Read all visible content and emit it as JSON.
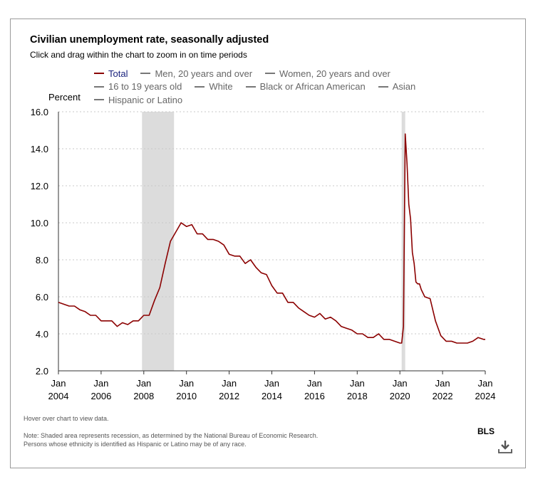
{
  "frame_title": "Civilian unemployment rate, seasonally adjusted",
  "subtitle": "Click and drag within the chart to zoom in on time periods",
  "legend": [
    {
      "label": "Total",
      "active": true
    },
    {
      "label": "Men, 20 years and over",
      "active": false
    },
    {
      "label": "Women, 20 years and over",
      "active": false
    },
    {
      "label": "16 to 19 years old",
      "active": false
    },
    {
      "label": "White",
      "active": false
    },
    {
      "label": "Black or African American",
      "active": false
    },
    {
      "label": "Asian",
      "active": false
    },
    {
      "label": "Hispanic or Latino",
      "active": false
    }
  ],
  "hover_text": "Hover over chart to view data.",
  "note_line1": "Note: Shaded area represents recession, as determined by the National Bureau of Economic Research.",
  "note_line2": "Persons whose ethnicity is identified as Hispanic or Latino may be of any race.",
  "source_label": "BLS",
  "colors": {
    "series": "#8b0000",
    "recession": "#dcdcdc",
    "legend_active_text": "#1a237e"
  },
  "icons": {
    "download": "download-icon"
  },
  "chart_data": {
    "type": "line",
    "title": "Civilian unemployment rate, seasonally adjusted",
    "ylabel": "Percent",
    "ylim": [
      2.0,
      16.0
    ],
    "yticks": [
      "2.0",
      "4.0",
      "6.0",
      "8.0",
      "10.0",
      "12.0",
      "14.0",
      "16.0"
    ],
    "xlim": [
      "2004-01",
      "2024-01"
    ],
    "xticks": [
      {
        "month": "Jan",
        "year": "2004",
        "at": "2004-01"
      },
      {
        "month": "Jan",
        "year": "2006",
        "at": "2006-01"
      },
      {
        "month": "Jan",
        "year": "2008",
        "at": "2008-01"
      },
      {
        "month": "Jan",
        "year": "2010",
        "at": "2010-01"
      },
      {
        "month": "Jan",
        "year": "2012",
        "at": "2012-01"
      },
      {
        "month": "Jan",
        "year": "2014",
        "at": "2014-01"
      },
      {
        "month": "Jan",
        "year": "2016",
        "at": "2016-01"
      },
      {
        "month": "Jan",
        "year": "2018",
        "at": "2018-01"
      },
      {
        "month": "Jan",
        "year": "2020",
        "at": "2020-01"
      },
      {
        "month": "Jan",
        "year": "2022",
        "at": "2022-01"
      },
      {
        "month": "Jan",
        "year": "2024",
        "at": "2024-01"
      }
    ],
    "grid": true,
    "legend_position": "top",
    "recessions": [
      {
        "start": "2007-12",
        "end": "2009-06"
      },
      {
        "start": "2020-02",
        "end": "2020-04"
      }
    ],
    "series": [
      {
        "name": "Total",
        "x": [
          "2004-01",
          "2004-04",
          "2004-07",
          "2004-10",
          "2005-01",
          "2005-04",
          "2005-07",
          "2005-10",
          "2006-01",
          "2006-04",
          "2006-07",
          "2006-10",
          "2007-01",
          "2007-04",
          "2007-07",
          "2007-10",
          "2008-01",
          "2008-04",
          "2008-07",
          "2008-10",
          "2009-01",
          "2009-04",
          "2009-07",
          "2009-10",
          "2010-01",
          "2010-04",
          "2010-07",
          "2010-10",
          "2011-01",
          "2011-04",
          "2011-07",
          "2011-10",
          "2012-01",
          "2012-04",
          "2012-07",
          "2012-10",
          "2013-01",
          "2013-04",
          "2013-07",
          "2013-10",
          "2014-01",
          "2014-04",
          "2014-07",
          "2014-10",
          "2015-01",
          "2015-04",
          "2015-07",
          "2015-10",
          "2016-01",
          "2016-04",
          "2016-07",
          "2016-10",
          "2017-01",
          "2017-04",
          "2017-07",
          "2017-10",
          "2018-01",
          "2018-04",
          "2018-07",
          "2018-10",
          "2019-01",
          "2019-04",
          "2019-07",
          "2019-10",
          "2020-01",
          "2020-02",
          "2020-03",
          "2020-04",
          "2020-05",
          "2020-06",
          "2020-07",
          "2020-08",
          "2020-09",
          "2020-10",
          "2020-11",
          "2020-12",
          "2021-01",
          "2021-03",
          "2021-06",
          "2021-09",
          "2021-12",
          "2022-03",
          "2022-06",
          "2022-09",
          "2022-12",
          "2023-03",
          "2023-06",
          "2023-09",
          "2023-12",
          "2024-01"
        ],
        "values": [
          5.7,
          5.6,
          5.5,
          5.5,
          5.3,
          5.2,
          5.0,
          5.0,
          4.7,
          4.7,
          4.7,
          4.4,
          4.6,
          4.5,
          4.7,
          4.7,
          5.0,
          5.0,
          5.8,
          6.5,
          7.8,
          9.0,
          9.5,
          10.0,
          9.8,
          9.9,
          9.4,
          9.4,
          9.1,
          9.1,
          9.0,
          8.8,
          8.3,
          8.2,
          8.2,
          7.8,
          8.0,
          7.6,
          7.3,
          7.2,
          6.6,
          6.2,
          6.2,
          5.7,
          5.7,
          5.4,
          5.2,
          5.0,
          4.9,
          5.1,
          4.8,
          4.9,
          4.7,
          4.4,
          4.3,
          4.2,
          4.0,
          4.0,
          3.8,
          3.8,
          4.0,
          3.7,
          3.7,
          3.6,
          3.5,
          3.5,
          4.4,
          14.8,
          13.2,
          11.0,
          10.2,
          8.4,
          7.8,
          6.8,
          6.7,
          6.7,
          6.4,
          6.0,
          5.9,
          4.7,
          3.9,
          3.6,
          3.6,
          3.5,
          3.5,
          3.5,
          3.6,
          3.8,
          3.7,
          3.7
        ]
      }
    ]
  }
}
